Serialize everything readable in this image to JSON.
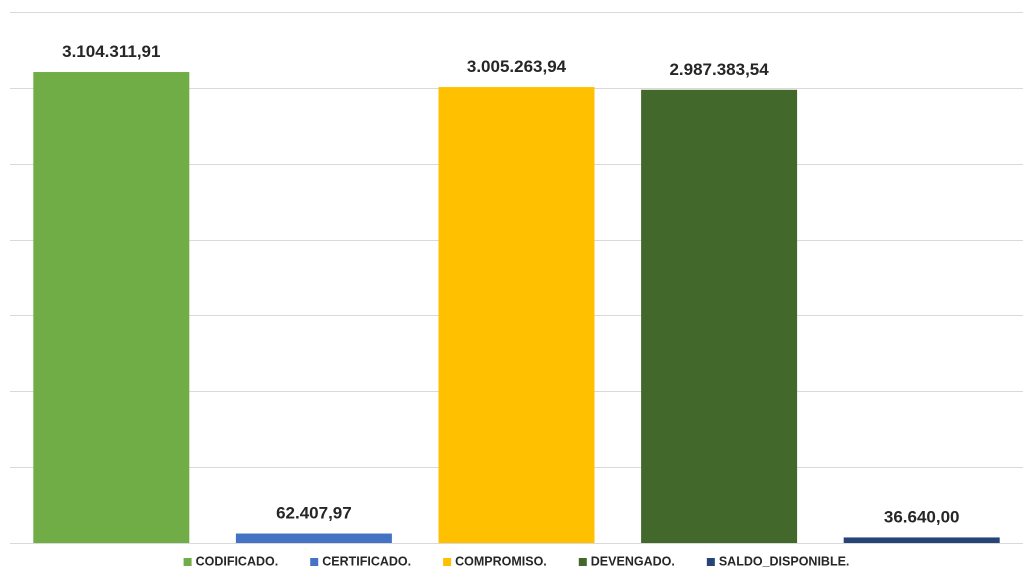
{
  "chart_data": {
    "type": "bar",
    "categories": [
      "CODIFICADO.",
      "CERTIFICADO.",
      "COMPROMISO.",
      "DEVENGADO.",
      "SALDO_DISPONIBLE."
    ],
    "values": [
      3104311.91,
      62407.97,
      3005263.94,
      2987383.54,
      36640.0
    ],
    "data_labels": [
      "3.104.311,91",
      "62.407,97",
      "3.005.263,94",
      "2.987.383,54",
      "36.640,00"
    ],
    "colors": [
      "#70ad47",
      "#4472c4",
      "#ffc000",
      "#43682b",
      "#264478"
    ],
    "ylim": [
      0,
      3500000
    ],
    "ytick_step": 500000,
    "grid": true,
    "legend": "bottom",
    "title": "",
    "xlabel": "",
    "ylabel": ""
  }
}
